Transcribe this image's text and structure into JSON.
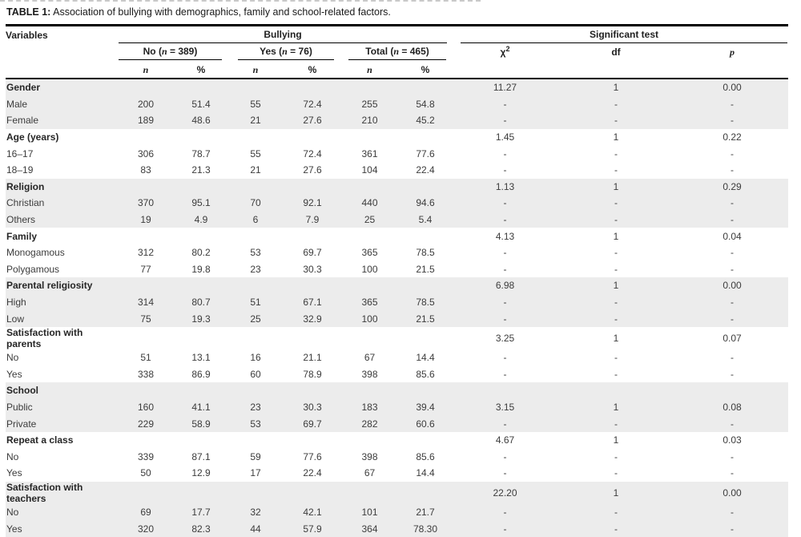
{
  "caption": {
    "label": "TABLE 1:",
    "text": " Association of bullying with demographics, family and school-related factors."
  },
  "header": {
    "variables": "Variables",
    "bullying": "Bullying",
    "significant_test": "Significant test",
    "no": {
      "pre": "No (",
      "n": "n",
      "post": " = 389)"
    },
    "yes": {
      "pre": "Yes (",
      "n": "n",
      "post": " = 76)"
    },
    "total": {
      "pre": "Total (",
      "n": "n",
      "post": " = 465)"
    },
    "n": "n",
    "pct": "%",
    "chi2": {
      "base": "χ",
      "sup": "2"
    },
    "df": "df",
    "p": "p"
  },
  "style": {
    "shade_color": "#ececec",
    "rule_color": "#000000"
  },
  "table": {
    "columns": [
      "variable",
      "no_n",
      "no_pct",
      "yes_n",
      "yes_pct",
      "total_n",
      "total_pct",
      "chi2",
      "df",
      "p"
    ],
    "groups": [
      {
        "name": "Gender",
        "shaded": true,
        "header_cells": [
          "",
          "",
          "",
          "",
          "",
          "",
          "11.27",
          "1",
          "0.00"
        ],
        "rows": [
          {
            "label": "Male",
            "cells": [
              "200",
              "51.4",
              "55",
              "72.4",
              "255",
              "54.8",
              "-",
              "-",
              "-"
            ]
          },
          {
            "label": "Female",
            "cells": [
              "189",
              "48.6",
              "21",
              "27.6",
              "210",
              "45.2",
              "-",
              "-",
              "-"
            ]
          }
        ]
      },
      {
        "name": "Age (years)",
        "shaded": false,
        "header_cells": [
          "",
          "",
          "",
          "",
          "",
          "",
          "1.45",
          "1",
          "0.22"
        ],
        "rows": [
          {
            "label": "16–17",
            "cells": [
              "306",
              "78.7",
              "55",
              "72.4",
              "361",
              "77.6",
              "-",
              "-",
              "-"
            ]
          },
          {
            "label": "18–19",
            "cells": [
              "83",
              "21.3",
              "21",
              "27.6",
              "104",
              "22.4",
              "-",
              "-",
              "-"
            ]
          }
        ]
      },
      {
        "name": "Religion",
        "shaded": true,
        "header_cells": [
          "",
          "",
          "",
          "",
          "",
          "",
          "1.13",
          "1",
          "0.29"
        ],
        "rows": [
          {
            "label": "Christian",
            "cells": [
              "370",
              "95.1",
              "70",
              "92.1",
              "440",
              "94.6",
              "-",
              "-",
              "-"
            ]
          },
          {
            "label": "Others",
            "cells": [
              "19",
              "4.9",
              "6",
              "7.9",
              "25",
              "5.4",
              "-",
              "-",
              "-"
            ]
          }
        ]
      },
      {
        "name": "Family",
        "shaded": false,
        "header_cells": [
          "",
          "",
          "",
          "",
          "",
          "",
          "4.13",
          "1",
          "0.04"
        ],
        "rows": [
          {
            "label": "Monogamous",
            "cells": [
              "312",
              "80.2",
              "53",
              "69.7",
              "365",
              "78.5",
              "-",
              "-",
              "-"
            ]
          },
          {
            "label": "Polygamous",
            "cells": [
              "77",
              "19.8",
              "23",
              "30.3",
              "100",
              "21.5",
              "-",
              "-",
              "-"
            ]
          }
        ]
      },
      {
        "name": "Parental religiosity",
        "shaded": true,
        "header_cells": [
          "",
          "",
          "",
          "",
          "",
          "",
          "6.98",
          "1",
          "0.00"
        ],
        "rows": [
          {
            "label": "High",
            "cells": [
              "314",
              "80.7",
              "51",
              "67.1",
              "365",
              "78.5",
              "-",
              "-",
              "-"
            ]
          },
          {
            "label": "Low",
            "cells": [
              "75",
              "19.3",
              "25",
              "32.9",
              "100",
              "21.5",
              "-",
              "-",
              "-"
            ]
          }
        ]
      },
      {
        "name": "Satisfaction with parents",
        "shaded": false,
        "header_cells": [
          "",
          "",
          "",
          "",
          "",
          "",
          "3.25",
          "1",
          "0.07"
        ],
        "rows": [
          {
            "label": "No",
            "cells": [
              "51",
              "13.1",
              "16",
              "21.1",
              "67",
              "14.4",
              "-",
              "-",
              "-"
            ]
          },
          {
            "label": "Yes",
            "cells": [
              "338",
              "86.9",
              "60",
              "78.9",
              "398",
              "85.6",
              "-",
              "-",
              "-"
            ]
          }
        ]
      },
      {
        "name": "School",
        "shaded": true,
        "header_cells": [
          "",
          "",
          "",
          "",
          "",
          "",
          "",
          "",
          ""
        ],
        "rows": [
          {
            "label": "Public",
            "cells": [
              "160",
              "41.1",
              "23",
              "30.3",
              "183",
              "39.4",
              "3.15",
              "1",
              "0.08"
            ]
          },
          {
            "label": "Private",
            "cells": [
              "229",
              "58.9",
              "53",
              "69.7",
              "282",
              "60.6",
              "-",
              "-",
              "-"
            ]
          }
        ]
      },
      {
        "name": "Repeat a class",
        "shaded": false,
        "header_cells": [
          "",
          "",
          "",
          "",
          "",
          "",
          "4.67",
          "1",
          "0.03"
        ],
        "rows": [
          {
            "label": "No",
            "cells": [
              "339",
              "87.1",
              "59",
              "77.6",
              "398",
              "85.6",
              "-",
              "-",
              "-"
            ]
          },
          {
            "label": "Yes",
            "cells": [
              "50",
              "12.9",
              "17",
              "22.4",
              "67",
              "14.4",
              "-",
              "-",
              "-"
            ]
          }
        ]
      },
      {
        "name": "Satisfaction with teachers",
        "shaded": true,
        "header_cells": [
          "",
          "",
          "",
          "",
          "",
          "",
          "22.20",
          "1",
          "0.00"
        ],
        "rows": [
          {
            "label": "No",
            "cells": [
              "69",
              "17.7",
              "32",
              "42.1",
              "101",
              "21.7",
              "-",
              "-",
              "-"
            ]
          },
          {
            "label": "Yes",
            "cells": [
              "320",
              "82.3",
              "44",
              "57.9",
              "364",
              "78.30",
              "-",
              "-",
              "-"
            ]
          }
        ]
      }
    ]
  }
}
